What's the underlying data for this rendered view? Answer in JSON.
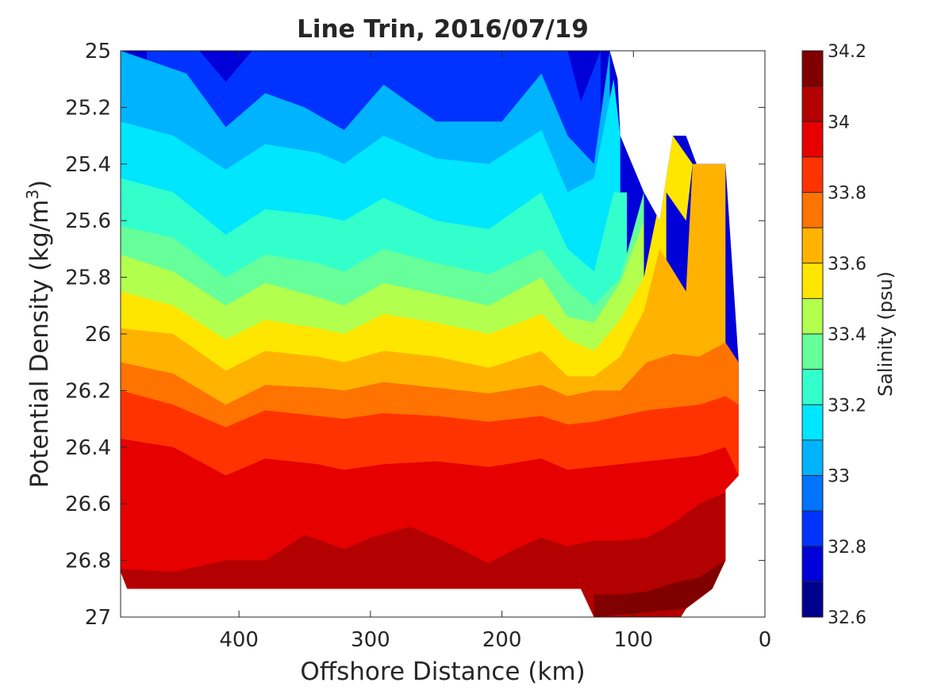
{
  "chart_data": {
    "type": "contourf",
    "title": "Line Trin, 2016/07/19",
    "xlabel": "Offshore Distance (km)",
    "ylabel": "Potential Density (kg/m",
    "ylabel_sup": "3",
    "ylabel_close": ")",
    "xlim": [
      490,
      0
    ],
    "ylim": [
      27,
      25
    ],
    "y_reversed": true,
    "x_reversed": true,
    "grid": false,
    "x_ticks": [
      400,
      300,
      200,
      100,
      0
    ],
    "y_ticks": [
      25,
      25.2,
      25.4,
      25.6,
      25.8,
      26,
      26.2,
      26.4,
      26.6,
      26.8,
      27
    ],
    "x_tick_labels": [
      "400",
      "300",
      "200",
      "100",
      "0"
    ],
    "y_tick_labels": [
      "25",
      "25.2",
      "25.4",
      "25.6",
      "25.8",
      "26",
      "26.2",
      "26.4",
      "26.6",
      "26.8",
      "27"
    ],
    "colorbar": {
      "label": "Salinity (psu)",
      "range": [
        32.6,
        34.2
      ],
      "levels": [
        32.6,
        32.7,
        32.8,
        32.9,
        33.0,
        33.1,
        33.2,
        33.3,
        33.4,
        33.5,
        33.6,
        33.7,
        33.8,
        33.9,
        34.0,
        34.1,
        34.2
      ],
      "tick_values": [
        32.6,
        32.8,
        33,
        33.2,
        33.4,
        33.6,
        33.8,
        34,
        34.2
      ],
      "tick_labels": [
        "32.6",
        "32.8",
        "33",
        "33.2",
        "33.4",
        "33.6",
        "33.8",
        "34",
        "34.2"
      ],
      "colors": [
        "#00008f",
        "#0000d8",
        "#0033ff",
        "#0073ff",
        "#00b3ff",
        "#00e6ff",
        "#33ffcc",
        "#66ff99",
        "#b3ff4d",
        "#ffe600",
        "#ffb300",
        "#ff7300",
        "#ff3300",
        "#e60000",
        "#b30000",
        "#800000"
      ]
    },
    "isopycnal_contours": [
      {
        "salinity": 32.8,
        "points": [
          [
            470,
            25.0
          ],
          [
            430,
            25.0
          ],
          [
            410,
            25.11
          ],
          [
            390,
            25.0
          ],
          [
            320,
            25.0
          ],
          [
            300,
            25.0
          ],
          [
            150,
            25.0
          ],
          [
            140,
            25.18
          ],
          [
            125,
            25.0
          ]
        ]
      },
      {
        "salinity": 33.0,
        "points": [
          [
            490,
            25.0
          ],
          [
            440,
            25.08
          ],
          [
            410,
            25.27
          ],
          [
            380,
            25.15
          ],
          [
            350,
            25.2
          ],
          [
            320,
            25.28
          ],
          [
            290,
            25.12
          ],
          [
            250,
            25.25
          ],
          [
            200,
            25.25
          ],
          [
            170,
            25.08
          ],
          [
            150,
            25.3
          ],
          [
            130,
            25.4
          ],
          [
            118,
            25.0
          ]
        ]
      },
      {
        "salinity": 33.1,
        "points": [
          [
            490,
            25.25
          ],
          [
            450,
            25.3
          ],
          [
            410,
            25.42
          ],
          [
            380,
            25.33
          ],
          [
            340,
            25.36
          ],
          [
            320,
            25.4
          ],
          [
            290,
            25.3
          ],
          [
            250,
            25.38
          ],
          [
            210,
            25.4
          ],
          [
            170,
            25.28
          ],
          [
            150,
            25.5
          ],
          [
            130,
            25.45
          ],
          [
            115,
            25.1
          ],
          [
            110,
            25.3
          ]
        ]
      },
      {
        "salinity": 33.2,
        "points": [
          [
            490,
            25.45
          ],
          [
            450,
            25.5
          ],
          [
            410,
            25.65
          ],
          [
            380,
            25.56
          ],
          [
            340,
            25.58
          ],
          [
            320,
            25.6
          ],
          [
            290,
            25.52
          ],
          [
            250,
            25.6
          ],
          [
            210,
            25.63
          ],
          [
            170,
            25.5
          ],
          [
            150,
            25.7
          ],
          [
            130,
            25.78
          ],
          [
            115,
            25.5
          ],
          [
            105,
            25.5
          ]
        ]
      },
      {
        "salinity": 33.3,
        "points": [
          [
            490,
            25.62
          ],
          [
            450,
            25.66
          ],
          [
            410,
            25.8
          ],
          [
            380,
            25.72
          ],
          [
            340,
            25.75
          ],
          [
            320,
            25.78
          ],
          [
            290,
            25.7
          ],
          [
            250,
            25.75
          ],
          [
            210,
            25.79
          ],
          [
            170,
            25.7
          ],
          [
            150,
            25.82
          ],
          [
            130,
            25.9
          ],
          [
            110,
            25.8
          ],
          [
            92,
            25.5
          ]
        ]
      },
      {
        "salinity": 33.4,
        "points": [
          [
            490,
            25.72
          ],
          [
            450,
            25.78
          ],
          [
            410,
            25.9
          ],
          [
            380,
            25.82
          ],
          [
            340,
            25.87
          ],
          [
            320,
            25.9
          ],
          [
            290,
            25.82
          ],
          [
            250,
            25.86
          ],
          [
            210,
            25.9
          ],
          [
            170,
            25.8
          ],
          [
            150,
            25.94
          ],
          [
            130,
            25.96
          ],
          [
            110,
            25.82
          ],
          [
            92,
            25.6
          ]
        ]
      },
      {
        "salinity": 33.5,
        "points": [
          [
            490,
            25.85
          ],
          [
            450,
            25.9
          ],
          [
            410,
            26.02
          ],
          [
            380,
            25.95
          ],
          [
            340,
            25.98
          ],
          [
            320,
            26.0
          ],
          [
            290,
            25.93
          ],
          [
            250,
            25.96
          ],
          [
            210,
            26.0
          ],
          [
            170,
            25.93
          ],
          [
            150,
            26.02
          ],
          [
            130,
            26.06
          ],
          [
            110,
            25.95
          ],
          [
            92,
            25.8
          ],
          [
            70,
            25.3
          ],
          [
            55,
            25.4
          ],
          [
            60,
            25.6
          ],
          [
            75,
            25.5
          ]
        ]
      },
      {
        "salinity": 33.6,
        "points": [
          [
            490,
            25.98
          ],
          [
            450,
            26.0
          ],
          [
            410,
            26.13
          ],
          [
            380,
            26.06
          ],
          [
            340,
            26.08
          ],
          [
            320,
            26.1
          ],
          [
            290,
            26.06
          ],
          [
            250,
            26.08
          ],
          [
            210,
            26.12
          ],
          [
            170,
            26.06
          ],
          [
            150,
            26.15
          ],
          [
            130,
            26.15
          ],
          [
            110,
            26.08
          ],
          [
            92,
            25.92
          ],
          [
            80,
            25.7
          ],
          [
            60,
            25.85
          ],
          [
            55,
            25.4
          ],
          [
            30,
            25.4
          ]
        ]
      },
      {
        "salinity": 33.7,
        "points": [
          [
            490,
            26.1
          ],
          [
            450,
            26.14
          ],
          [
            410,
            26.25
          ],
          [
            380,
            26.18
          ],
          [
            340,
            26.19
          ],
          [
            320,
            26.2
          ],
          [
            290,
            26.17
          ],
          [
            250,
            26.19
          ],
          [
            210,
            26.21
          ],
          [
            170,
            26.18
          ],
          [
            150,
            26.22
          ],
          [
            130,
            26.2
          ],
          [
            110,
            26.2
          ],
          [
            90,
            26.1
          ],
          [
            70,
            26.07
          ],
          [
            50,
            26.08
          ],
          [
            30,
            26.03
          ],
          [
            20,
            26.1
          ]
        ]
      },
      {
        "salinity": 33.8,
        "points": [
          [
            490,
            26.2
          ],
          [
            450,
            26.25
          ],
          [
            410,
            26.33
          ],
          [
            380,
            26.27
          ],
          [
            340,
            26.29
          ],
          [
            320,
            26.3
          ],
          [
            290,
            26.28
          ],
          [
            250,
            26.29
          ],
          [
            210,
            26.31
          ],
          [
            170,
            26.29
          ],
          [
            150,
            26.32
          ],
          [
            130,
            26.31
          ],
          [
            110,
            26.29
          ],
          [
            90,
            26.27
          ],
          [
            70,
            26.26
          ],
          [
            50,
            26.25
          ],
          [
            30,
            26.22
          ],
          [
            20,
            26.25
          ]
        ]
      },
      {
        "salinity": 33.9,
        "points": [
          [
            490,
            26.37
          ],
          [
            450,
            26.4
          ],
          [
            410,
            26.5
          ],
          [
            380,
            26.44
          ],
          [
            340,
            26.46
          ],
          [
            320,
            26.48
          ],
          [
            290,
            26.46
          ],
          [
            250,
            26.45
          ],
          [
            210,
            26.47
          ],
          [
            170,
            26.44
          ],
          [
            150,
            26.48
          ],
          [
            130,
            26.47
          ],
          [
            110,
            26.46
          ],
          [
            90,
            26.45
          ],
          [
            70,
            26.44
          ],
          [
            50,
            26.43
          ],
          [
            30,
            26.4
          ],
          [
            20,
            26.5
          ]
        ]
      },
      {
        "salinity": 34.0,
        "points": [
          [
            490,
            26.83
          ],
          [
            450,
            26.84
          ],
          [
            410,
            26.8
          ],
          [
            380,
            26.8
          ],
          [
            350,
            26.71
          ],
          [
            320,
            26.76
          ],
          [
            300,
            26.72
          ],
          [
            270,
            26.68
          ],
          [
            240,
            26.74
          ],
          [
            210,
            26.81
          ],
          [
            190,
            26.76
          ],
          [
            170,
            26.72
          ],
          [
            150,
            26.75
          ],
          [
            130,
            26.73
          ],
          [
            110,
            26.73
          ],
          [
            90,
            26.72
          ],
          [
            70,
            26.67
          ],
          [
            50,
            26.6
          ],
          [
            30,
            26.56
          ],
          [
            20,
            26.5
          ]
        ]
      },
      {
        "salinity": 34.1,
        "points": [
          [
            130,
            26.92
          ],
          [
            110,
            26.92
          ],
          [
            90,
            26.91
          ],
          [
            70,
            26.88
          ],
          [
            50,
            26.86
          ],
          [
            30,
            26.8
          ],
          [
            40,
            26.9
          ],
          [
            60,
            26.97
          ],
          [
            130,
            27.0
          ]
        ]
      }
    ]
  }
}
